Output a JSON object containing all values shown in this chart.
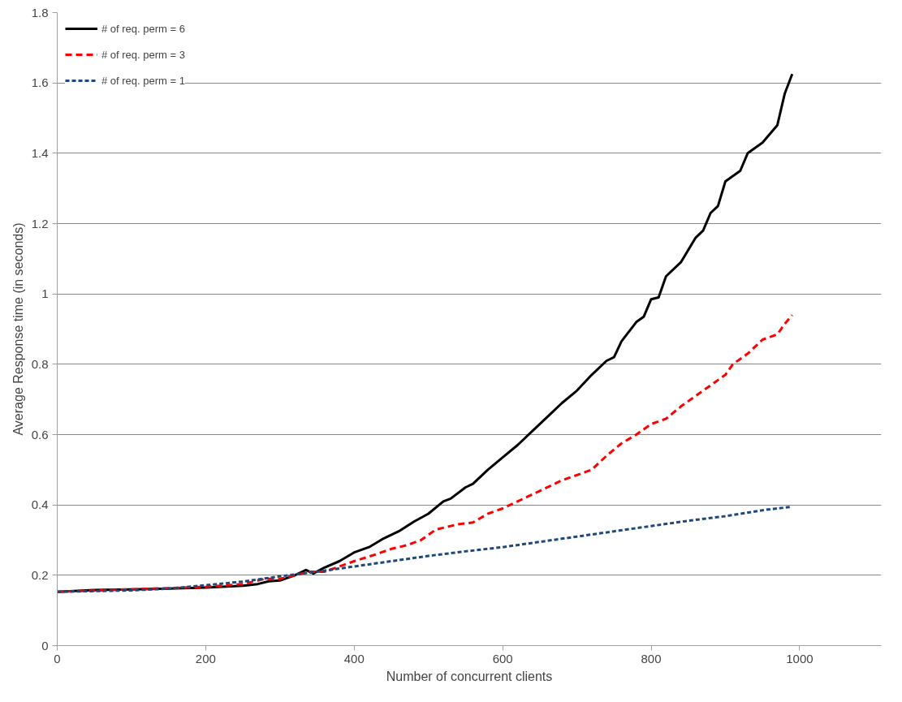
{
  "chart_data": {
    "type": "line",
    "xlabel": "Number of concurrent clients",
    "ylabel": "Average Response time (in seconds)",
    "xlim": [
      0,
      1110
    ],
    "xticks": [
      0,
      200,
      400,
      600,
      800,
      1000
    ],
    "ylim": [
      0,
      1.8
    ],
    "yticks": [
      0,
      0.2,
      0.4,
      0.6,
      0.8,
      1,
      1.2,
      1.4,
      1.6,
      1.8
    ],
    "grid": "y",
    "legend": "top left",
    "marker": "none",
    "series": [
      {
        "name": "# of req. perm = 6",
        "color": "#000000",
        "line_style": "solid",
        "x": [
          0,
          50,
          100,
          150,
          200,
          250,
          270,
          285,
          300,
          320,
          335,
          345,
          360,
          380,
          400,
          420,
          440,
          460,
          480,
          500,
          520,
          530,
          550,
          560,
          580,
          600,
          620,
          640,
          660,
          680,
          700,
          720,
          740,
          750,
          760,
          780,
          790,
          800,
          810,
          820,
          840,
          860,
          870,
          880,
          890,
          900,
          920,
          930,
          950,
          970,
          980,
          990
        ],
        "values": [
          0.153,
          0.158,
          0.16,
          0.162,
          0.165,
          0.17,
          0.175,
          0.183,
          0.185,
          0.2,
          0.215,
          0.205,
          0.222,
          0.24,
          0.265,
          0.28,
          0.305,
          0.325,
          0.352,
          0.375,
          0.41,
          0.418,
          0.45,
          0.46,
          0.5,
          0.535,
          0.57,
          0.61,
          0.65,
          0.69,
          0.725,
          0.77,
          0.81,
          0.82,
          0.865,
          0.92,
          0.935,
          0.985,
          0.99,
          1.05,
          1.09,
          1.16,
          1.18,
          1.23,
          1.25,
          1.32,
          1.35,
          1.4,
          1.43,
          1.48,
          1.57,
          1.625
        ]
      },
      {
        "name": "# of req. perm = 3",
        "color": "#ff0000",
        "line_style": "dashed",
        "x": [
          0,
          100,
          200,
          250,
          280,
          300,
          320,
          340,
          360,
          380,
          400,
          430,
          450,
          470,
          490,
          510,
          540,
          560,
          580,
          600,
          620,
          650,
          680,
          700,
          720,
          740,
          760,
          780,
          800,
          820,
          840,
          860,
          880,
          900,
          910,
          930,
          950,
          970,
          980,
          990
        ],
        "values": [
          0.153,
          0.16,
          0.167,
          0.175,
          0.19,
          0.19,
          0.2,
          0.21,
          0.21,
          0.225,
          0.24,
          0.26,
          0.275,
          0.285,
          0.3,
          0.33,
          0.345,
          0.35,
          0.375,
          0.39,
          0.41,
          0.44,
          0.47,
          0.485,
          0.5,
          0.54,
          0.575,
          0.6,
          0.63,
          0.645,
          0.68,
          0.71,
          0.74,
          0.77,
          0.8,
          0.83,
          0.87,
          0.885,
          0.915,
          0.94
        ]
      },
      {
        "name": "# of req. perm = 1",
        "color": "#1f497d",
        "line_style": "dotted",
        "x": [
          0,
          100,
          150,
          200,
          250,
          300,
          350,
          400,
          450,
          500,
          550,
          600,
          650,
          700,
          750,
          800,
          850,
          900,
          950,
          990
        ],
        "values": [
          0.153,
          0.157,
          0.162,
          0.172,
          0.182,
          0.197,
          0.21,
          0.225,
          0.24,
          0.255,
          0.268,
          0.28,
          0.295,
          0.31,
          0.325,
          0.34,
          0.355,
          0.368,
          0.385,
          0.395
        ]
      }
    ]
  }
}
